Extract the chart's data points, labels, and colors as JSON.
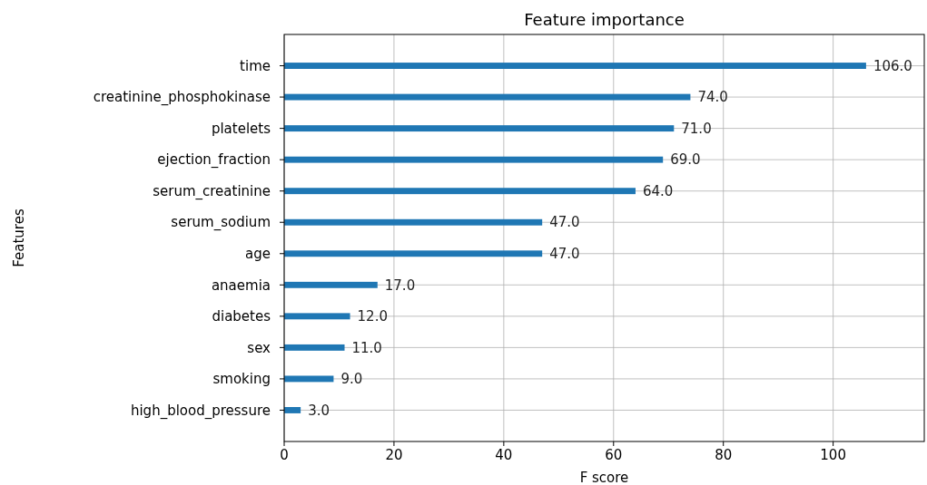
{
  "chart_data": {
    "type": "bar",
    "orientation": "horizontal",
    "title": "Feature importance",
    "xlabel": "F score",
    "ylabel": "Features",
    "categories": [
      "time",
      "creatinine_phosphokinase",
      "platelets",
      "ejection_fraction",
      "serum_creatinine",
      "serum_sodium",
      "age",
      "anaemia",
      "diabetes",
      "sex",
      "smoking",
      "high_blood_pressure"
    ],
    "values": [
      106,
      74,
      71,
      69,
      64,
      47,
      47,
      17,
      12,
      11,
      9,
      3
    ],
    "value_labels": [
      "106.0",
      "74.0",
      "71.0",
      "69.0",
      "64.0",
      "47.0",
      "47.0",
      "17.0",
      "12.0",
      "11.0",
      "9.0",
      "3.0"
    ],
    "color": "#1f77b4",
    "xlim": [
      0,
      116.6
    ],
    "xticks": [
      0,
      20,
      40,
      60,
      80,
      100
    ],
    "grid": true
  }
}
